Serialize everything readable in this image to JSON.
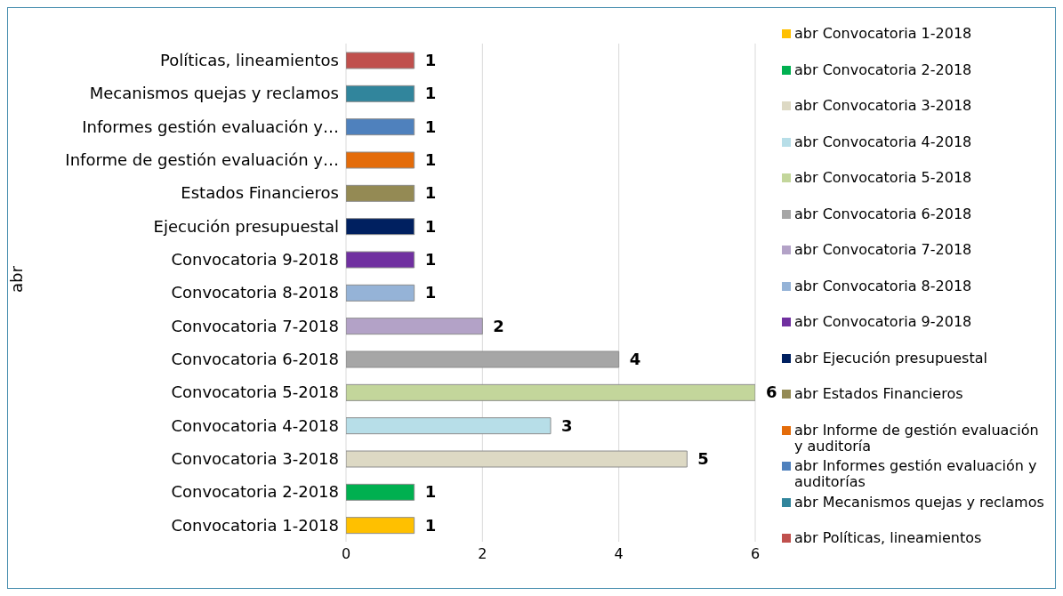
{
  "chart_data": {
    "type": "bar",
    "orientation": "horizontal",
    "stacked": true,
    "ylabel": "abr",
    "categories": [
      "Políticas, lineamientos",
      "Mecanismos quejas y reclamos",
      "Informes gestión evaluación y…",
      "Informe de gestión evaluación y…",
      "Estados Financieros",
      "Ejecución presupuestal",
      "Convocatoria 9-2018",
      "Convocatoria 8-2018",
      "Convocatoria 7-2018",
      "Convocatoria 6-2018",
      "Convocatoria 5-2018",
      "Convocatoria 4-2018",
      "Convocatoria 3-2018",
      "Convocatoria 2-2018",
      "Convocatoria 1-2018"
    ],
    "series": [
      {
        "name": "abr Convocatoria 1-2018",
        "color": "#ffc000",
        "values": [
          null,
          null,
          null,
          null,
          null,
          null,
          null,
          null,
          null,
          null,
          null,
          null,
          null,
          null,
          1
        ]
      },
      {
        "name": "abr Convocatoria 2-2018",
        "color": "#00b050",
        "values": [
          null,
          null,
          null,
          null,
          null,
          null,
          null,
          null,
          null,
          null,
          null,
          null,
          null,
          1,
          null
        ]
      },
      {
        "name": "abr Convocatoria 3-2018",
        "color": "#ddd9c4",
        "values": [
          null,
          null,
          null,
          null,
          null,
          null,
          null,
          null,
          null,
          null,
          null,
          null,
          5,
          null,
          null
        ]
      },
      {
        "name": "abr Convocatoria 4-2018",
        "color": "#b7dee8",
        "values": [
          null,
          null,
          null,
          null,
          null,
          null,
          null,
          null,
          null,
          null,
          null,
          3,
          null,
          null,
          null
        ]
      },
      {
        "name": "abr Convocatoria 5-2018",
        "color": "#c3d69b",
        "values": [
          null,
          null,
          null,
          null,
          null,
          null,
          null,
          null,
          null,
          null,
          6,
          null,
          null,
          null,
          null
        ]
      },
      {
        "name": "abr Convocatoria 6-2018",
        "color": "#a6a6a6",
        "values": [
          null,
          null,
          null,
          null,
          null,
          null,
          null,
          null,
          null,
          4,
          null,
          null,
          null,
          null,
          null
        ]
      },
      {
        "name": "abr Convocatoria 7-2018",
        "color": "#b3a2c7",
        "values": [
          null,
          null,
          null,
          null,
          null,
          null,
          null,
          null,
          2,
          null,
          null,
          null,
          null,
          null,
          null
        ]
      },
      {
        "name": "abr Convocatoria 8-2018",
        "color": "#95b3d7",
        "values": [
          null,
          null,
          null,
          null,
          null,
          null,
          null,
          1,
          null,
          null,
          null,
          null,
          null,
          null,
          null
        ]
      },
      {
        "name": "abr Convocatoria 9-2018",
        "color": "#7030a0",
        "values": [
          null,
          null,
          null,
          null,
          null,
          null,
          1,
          null,
          null,
          null,
          null,
          null,
          null,
          null,
          null
        ]
      },
      {
        "name": "abr Ejecución presupuestal",
        "color": "#002060",
        "values": [
          null,
          null,
          null,
          null,
          null,
          1,
          null,
          null,
          null,
          null,
          null,
          null,
          null,
          null,
          null
        ]
      },
      {
        "name": "abr Estados Financieros",
        "color": "#948a54",
        "values": [
          null,
          null,
          null,
          null,
          1,
          null,
          null,
          null,
          null,
          null,
          null,
          null,
          null,
          null,
          null
        ]
      },
      {
        "name": "abr Informe de gestión evaluación y auditoría",
        "color": "#e46c0a",
        "values": [
          null,
          null,
          null,
          1,
          null,
          null,
          null,
          null,
          null,
          null,
          null,
          null,
          null,
          null,
          null
        ]
      },
      {
        "name": "abr Informes gestión evaluación y auditorías",
        "color": "#4f81bd",
        "values": [
          null,
          null,
          1,
          null,
          null,
          null,
          null,
          null,
          null,
          null,
          null,
          null,
          null,
          null,
          null
        ]
      },
      {
        "name": "abr Mecanismos quejas y reclamos",
        "color": "#31859c",
        "values": [
          null,
          1,
          null,
          null,
          null,
          null,
          null,
          null,
          null,
          null,
          null,
          null,
          null,
          null,
          null
        ]
      },
      {
        "name": "abr Políticas, lineamientos",
        "color": "#c0504d",
        "values": [
          1,
          null,
          null,
          null,
          null,
          null,
          null,
          null,
          null,
          null,
          null,
          null,
          null,
          null,
          null
        ]
      }
    ],
    "xlim": [
      0,
      6
    ],
    "xticks": [
      0,
      2,
      4,
      6
    ],
    "grid": "x",
    "legend": "right",
    "data_labels": true
  }
}
